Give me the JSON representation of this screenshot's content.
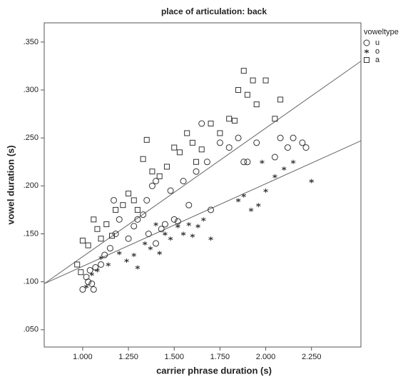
{
  "chart_data": {
    "type": "scatter",
    "title": "place of articulation: back",
    "x_label": "carrier phrase duration (s)",
    "y_label": "vowel duration (s)",
    "legend_title": "voweltype",
    "xlim": [
      0.79,
      2.52
    ],
    "ylim": [
      0.032,
      0.37
    ],
    "xticks": [
      {
        "value": 1.0,
        "label": "1.000"
      },
      {
        "value": 1.25,
        "label": "1.250"
      },
      {
        "value": 1.5,
        "label": "1.500"
      },
      {
        "value": 1.75,
        "label": "1.750"
      },
      {
        "value": 2.0,
        "label": "2.000"
      },
      {
        "value": 2.25,
        "label": "2.250"
      }
    ],
    "yticks": [
      {
        "value": 0.05,
        "label": ".050"
      },
      {
        "value": 0.1,
        "label": ".100"
      },
      {
        "value": 0.15,
        "label": ".150"
      },
      {
        "value": 0.2,
        "label": ".200"
      },
      {
        "value": 0.25,
        "label": ".250"
      },
      {
        "value": 0.3,
        "label": ".300"
      },
      {
        "value": 0.35,
        "label": ".350"
      }
    ],
    "series": [
      {
        "name": "u",
        "marker": "circle",
        "color": "#333333",
        "x": [
          1.0,
          1.02,
          1.03,
          1.05,
          1.06,
          1.04,
          1.07,
          1.1,
          1.12,
          1.15,
          1.18,
          1.2,
          1.17,
          1.25,
          1.28,
          1.3,
          1.33,
          1.35,
          1.38,
          1.4,
          1.43,
          1.45,
          1.48,
          1.5,
          1.55,
          1.58,
          1.62,
          1.65,
          1.68,
          1.7,
          1.75,
          1.8,
          1.85,
          1.88,
          1.9,
          1.95,
          2.05,
          2.08,
          2.12,
          2.15,
          2.2,
          2.22,
          1.4,
          1.52,
          1.36
        ],
        "values": [
          0.092,
          0.105,
          0.1,
          0.098,
          0.092,
          0.112,
          0.115,
          0.118,
          0.128,
          0.135,
          0.15,
          0.165,
          0.185,
          0.145,
          0.158,
          0.165,
          0.17,
          0.185,
          0.2,
          0.14,
          0.155,
          0.16,
          0.195,
          0.165,
          0.205,
          0.18,
          0.215,
          0.265,
          0.225,
          0.175,
          0.245,
          0.24,
          0.25,
          0.225,
          0.225,
          0.245,
          0.23,
          0.25,
          0.24,
          0.25,
          0.245,
          0.24,
          0.205,
          0.163,
          0.15
        ]
      },
      {
        "name": "o",
        "marker": "star",
        "color": "#333333",
        "x": [
          1.02,
          1.05,
          1.08,
          1.1,
          1.14,
          1.2,
          1.24,
          1.28,
          1.3,
          1.34,
          1.37,
          1.42,
          1.45,
          1.48,
          1.52,
          1.55,
          1.58,
          1.6,
          1.63,
          1.66,
          1.7,
          1.85,
          1.88,
          1.92,
          1.96,
          2.0,
          2.05,
          2.1,
          2.15,
          2.25,
          1.98,
          1.4
        ],
        "values": [
          0.095,
          0.108,
          0.112,
          0.125,
          0.118,
          0.13,
          0.122,
          0.128,
          0.115,
          0.14,
          0.135,
          0.13,
          0.15,
          0.145,
          0.158,
          0.15,
          0.16,
          0.148,
          0.158,
          0.165,
          0.145,
          0.185,
          0.19,
          0.175,
          0.18,
          0.195,
          0.21,
          0.218,
          0.225,
          0.205,
          0.225,
          0.16
        ]
      },
      {
        "name": "a",
        "marker": "square",
        "color": "#333333",
        "x": [
          0.97,
          0.99,
          1.0,
          1.03,
          1.06,
          1.08,
          1.1,
          1.13,
          1.16,
          1.18,
          1.22,
          1.25,
          1.28,
          1.3,
          1.33,
          1.35,
          1.38,
          1.42,
          1.46,
          1.5,
          1.53,
          1.57,
          1.6,
          1.65,
          1.7,
          1.75,
          1.8,
          1.85,
          1.88,
          1.9,
          1.93,
          1.95,
          2.0,
          2.05,
          2.08,
          1.83,
          1.62
        ],
        "values": [
          0.118,
          0.11,
          0.143,
          0.138,
          0.165,
          0.155,
          0.145,
          0.16,
          0.148,
          0.175,
          0.18,
          0.192,
          0.185,
          0.175,
          0.228,
          0.248,
          0.215,
          0.21,
          0.22,
          0.24,
          0.235,
          0.255,
          0.245,
          0.238,
          0.265,
          0.255,
          0.27,
          0.3,
          0.32,
          0.295,
          0.31,
          0.285,
          0.31,
          0.27,
          0.29,
          0.268,
          0.225
        ]
      }
    ],
    "fit_lines": [
      {
        "color": "#666666",
        "x": [
          0.79,
          2.52
        ],
        "y": [
          0.098,
          0.33
        ]
      },
      {
        "color": "#666666",
        "x": [
          0.79,
          2.52
        ],
        "y": [
          0.098,
          0.247
        ]
      }
    ]
  }
}
